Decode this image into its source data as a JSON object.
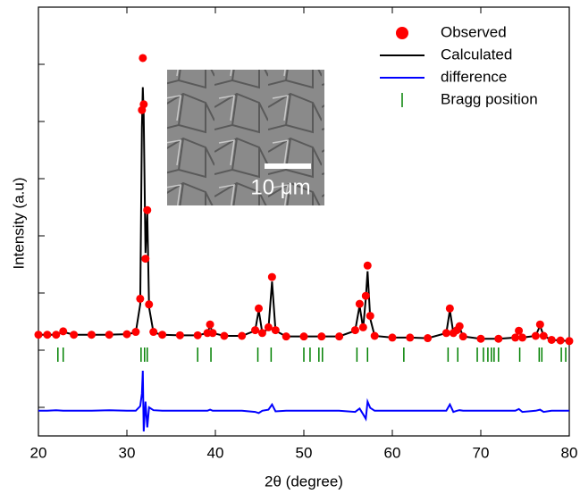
{
  "chart_data": {
    "type": "line",
    "x_label": "2θ (degree)",
    "y_label": "Intensity (a.u)",
    "xlim": [
      20,
      80
    ],
    "xticks": [
      20,
      30,
      40,
      50,
      60,
      70,
      80
    ],
    "ylim": [
      -0.5,
      7
    ],
    "yticks": [
      0,
      1,
      2,
      3,
      4,
      5,
      6
    ],
    "legend": "top-right",
    "x": [
      20,
      21,
      22,
      22.8,
      24,
      26,
      28,
      30,
      31,
      31.5,
      31.7,
      31.8,
      31.9,
      32.1,
      32.3,
      32.5,
      33,
      34,
      36,
      38,
      39.1,
      39.4,
      39.7,
      41,
      43,
      44.5,
      44.9,
      45.3,
      46.0,
      46.4,
      46.8,
      48,
      50,
      52,
      54,
      55.8,
      56.3,
      56.7,
      57.0,
      57.2,
      57.5,
      58,
      60,
      62,
      64,
      66.1,
      66.5,
      66.9,
      67.3,
      67.6,
      68,
      70,
      72,
      73.9,
      74.3,
      74.7,
      76.2,
      76.7,
      77.1,
      78,
      79,
      80
    ],
    "series": [
      {
        "name": "Observed",
        "color": "#ff0000",
        "style": "dots",
        "values": [
          1.27,
          1.27,
          1.27,
          1.33,
          1.27,
          1.27,
          1.27,
          1.28,
          1.32,
          1.9,
          5.2,
          6.11,
          5.3,
          2.6,
          3.45,
          1.8,
          1.32,
          1.27,
          1.26,
          1.26,
          1.3,
          1.45,
          1.3,
          1.25,
          1.25,
          1.35,
          1.73,
          1.3,
          1.4,
          2.28,
          1.35,
          1.24,
          1.24,
          1.24,
          1.24,
          1.35,
          1.81,
          1.4,
          1.95,
          2.48,
          1.6,
          1.25,
          1.22,
          1.22,
          1.21,
          1.3,
          1.73,
          1.3,
          1.35,
          1.42,
          1.24,
          1.2,
          1.2,
          1.22,
          1.34,
          1.22,
          1.25,
          1.45,
          1.25,
          1.18,
          1.17,
          1.16
        ]
      },
      {
        "name": "Calculated",
        "color": "#000000",
        "style": "line",
        "values": [
          1.27,
          1.27,
          1.27,
          1.32,
          1.27,
          1.27,
          1.27,
          1.28,
          1.31,
          1.8,
          4.9,
          5.6,
          5.1,
          2.7,
          3.4,
          1.75,
          1.31,
          1.27,
          1.26,
          1.26,
          1.3,
          1.43,
          1.3,
          1.25,
          1.25,
          1.34,
          1.7,
          1.3,
          1.38,
          2.2,
          1.34,
          1.24,
          1.24,
          1.24,
          1.24,
          1.34,
          1.78,
          1.38,
          1.9,
          2.38,
          1.55,
          1.25,
          1.22,
          1.22,
          1.21,
          1.3,
          1.7,
          1.3,
          1.34,
          1.4,
          1.24,
          1.2,
          1.2,
          1.22,
          1.32,
          1.22,
          1.25,
          1.43,
          1.25,
          1.18,
          1.17,
          1.16
        ]
      },
      {
        "name": "difference",
        "color": "#0000ff",
        "style": "line",
        "values": [
          -0.06,
          -0.06,
          -0.05,
          -0.06,
          -0.06,
          -0.06,
          -0.05,
          -0.06,
          -0.06,
          0.02,
          0.24,
          0.64,
          -0.42,
          0.1,
          -0.35,
          0.0,
          -0.05,
          -0.06,
          -0.06,
          -0.06,
          -0.06,
          -0.04,
          -0.06,
          -0.06,
          -0.06,
          -0.08,
          -0.1,
          -0.06,
          -0.04,
          0.05,
          -0.07,
          -0.06,
          -0.06,
          -0.06,
          -0.06,
          -0.08,
          -0.02,
          -0.12,
          -0.2,
          0.1,
          -0.01,
          -0.06,
          -0.06,
          -0.06,
          -0.06,
          -0.06,
          0.05,
          -0.08,
          -0.06,
          -0.05,
          -0.06,
          -0.06,
          -0.06,
          -0.06,
          -0.03,
          -0.08,
          -0.06,
          -0.04,
          -0.08,
          -0.06,
          -0.06,
          -0.06
        ]
      }
    ],
    "bragg": {
      "name": "Bragg position",
      "color": "#008000",
      "x": [
        22.2,
        22.8,
        31.6,
        32.0,
        32.3,
        38.0,
        39.5,
        44.8,
        46.3,
        50.0,
        50.7,
        51.7,
        52.1,
        56.0,
        57.2,
        61.3,
        66.3,
        67.4,
        69.6,
        70.3,
        70.8,
        71.2,
        71.5,
        72.0,
        74.4,
        76.6,
        76.9,
        79.1,
        79.6
      ]
    },
    "inset": {
      "scale_label": "10 μm"
    }
  }
}
